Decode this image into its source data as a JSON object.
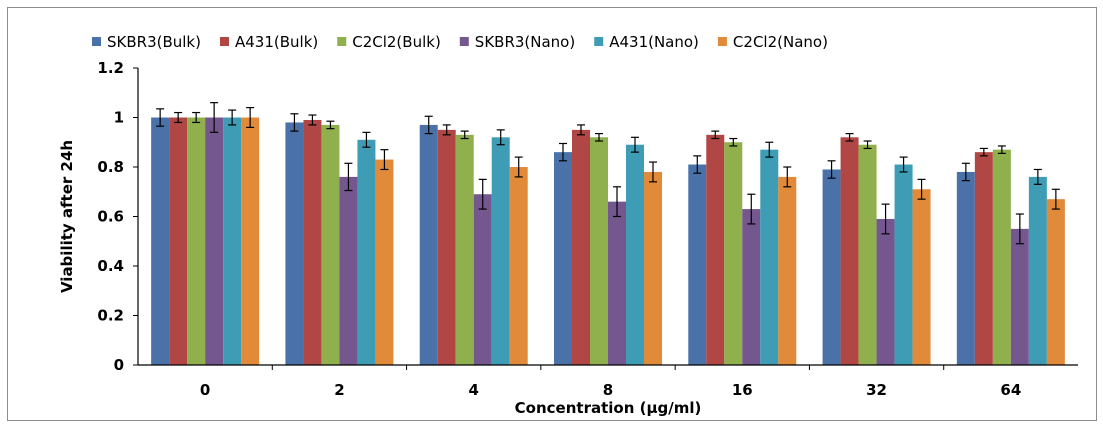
{
  "chart_data": {
    "type": "bar",
    "title": "",
    "xlabel": "Concentration (µg/ml)",
    "ylabel": "Viability after 24h",
    "ylim": [
      0,
      1.2
    ],
    "yticks": [
      "0",
      "0.2",
      "0.4",
      "0.6",
      "0.8",
      "1",
      "1.2"
    ],
    "categories": [
      "0",
      "2",
      "4",
      "8",
      "16",
      "32",
      "64"
    ],
    "legend_position": "top",
    "grid": false,
    "series": [
      {
        "name": "SKBR3(Bulk)",
        "color": "#4a72a8",
        "values": [
          1.0,
          0.98,
          0.97,
          0.86,
          0.81,
          0.79,
          0.78
        ],
        "errors": [
          0.035,
          0.035,
          0.035,
          0.035,
          0.035,
          0.035,
          0.035
        ]
      },
      {
        "name": "A431(Bulk)",
        "color": "#b04744",
        "values": [
          1.0,
          0.99,
          0.95,
          0.95,
          0.93,
          0.92,
          0.86
        ],
        "errors": [
          0.02,
          0.02,
          0.02,
          0.02,
          0.015,
          0.015,
          0.015
        ]
      },
      {
        "name": "C2Cl2(Bulk)",
        "color": "#8fb04d",
        "values": [
          1.0,
          0.97,
          0.93,
          0.92,
          0.9,
          0.89,
          0.87
        ],
        "errors": [
          0.02,
          0.015,
          0.015,
          0.015,
          0.015,
          0.015,
          0.015
        ]
      },
      {
        "name": "SKBR3(Nano)",
        "color": "#74578f",
        "values": [
          1.0,
          0.76,
          0.69,
          0.66,
          0.63,
          0.59,
          0.55
        ],
        "errors": [
          0.06,
          0.055,
          0.06,
          0.06,
          0.06,
          0.06,
          0.06
        ]
      },
      {
        "name": "A431(Nano)",
        "color": "#3f9cb5",
        "values": [
          1.0,
          0.91,
          0.92,
          0.89,
          0.87,
          0.81,
          0.76
        ],
        "errors": [
          0.03,
          0.03,
          0.03,
          0.03,
          0.03,
          0.03,
          0.03
        ]
      },
      {
        "name": "C2Cl2(Nano)",
        "color": "#e08a3a",
        "values": [
          1.0,
          0.83,
          0.8,
          0.78,
          0.76,
          0.71,
          0.67
        ],
        "errors": [
          0.04,
          0.04,
          0.04,
          0.04,
          0.04,
          0.04,
          0.04
        ]
      }
    ]
  }
}
